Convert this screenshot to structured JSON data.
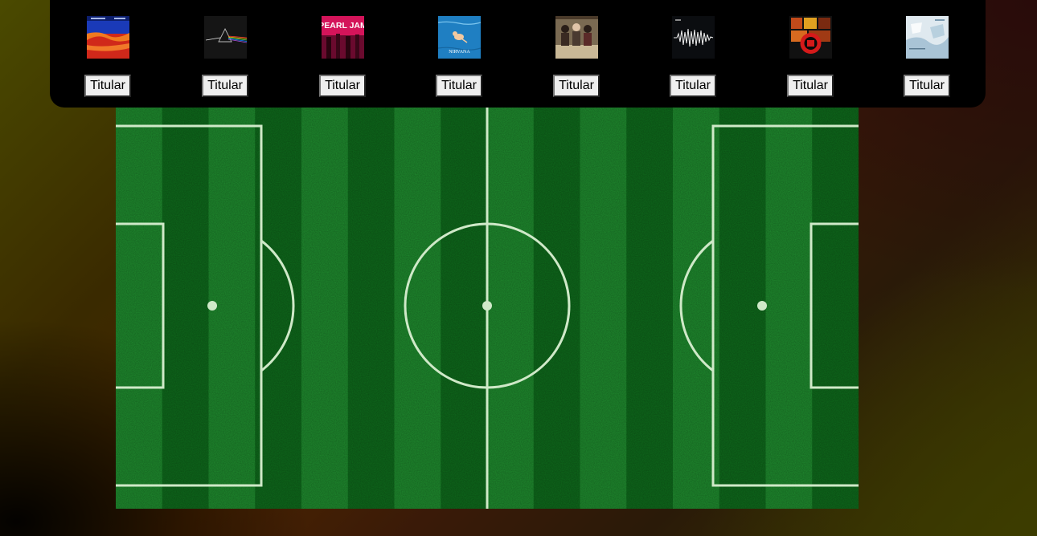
{
  "toolbar": {
    "players": [
      {
        "cover_name": "californication-cover",
        "button_label": "Titular"
      },
      {
        "cover_name": "dark-side-of-the-moon-cover",
        "button_label": "Titular"
      },
      {
        "cover_name": "ten-cover",
        "cover_text": "PEARL JAM",
        "button_label": "Titular"
      },
      {
        "cover_name": "nevermind-cover",
        "cover_text": "NIRVANA",
        "button_label": "Titular"
      },
      {
        "cover_name": "band-photo-cover",
        "button_label": "Titular"
      },
      {
        "cover_name": "am-cover",
        "button_label": "Titular"
      },
      {
        "cover_name": "red-emblem-cover",
        "button_label": "Titular"
      },
      {
        "cover_name": "ok-computer-cover",
        "button_label": "Titular"
      }
    ]
  },
  "pitch": {
    "grass_light": "#1f8a2e",
    "grass_dark": "#0f6a1c",
    "line_color": "#cfe9c8"
  }
}
